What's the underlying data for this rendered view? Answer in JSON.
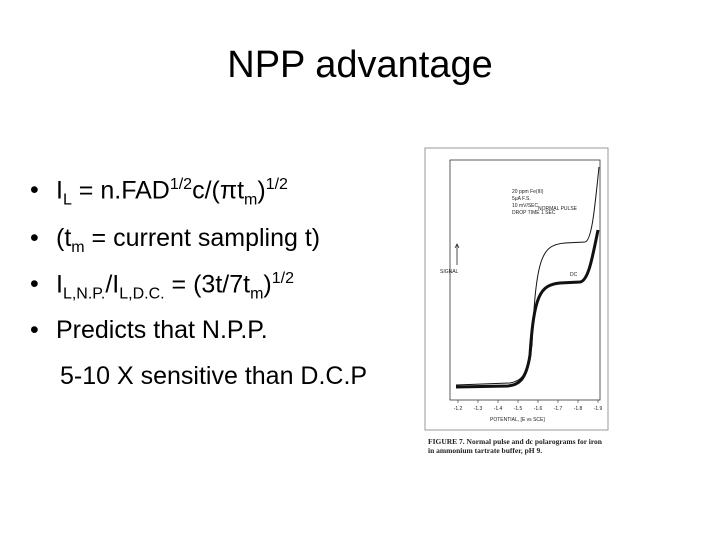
{
  "title": "NPP advantage",
  "bullets": [
    [
      {
        "text": "I"
      },
      {
        "sub": "L"
      },
      {
        "text": " = n.FAD"
      },
      {
        "sup": "1/2"
      },
      {
        "text": "c/(πt"
      },
      {
        "sub": "m"
      },
      {
        "text": ")"
      },
      {
        "sup": "1/2"
      }
    ],
    [
      {
        "text": "(t"
      },
      {
        "sub": "m"
      },
      {
        "text": " = current sampling t)"
      }
    ],
    [
      {
        "text": "I"
      },
      {
        "sub": "L,N.P."
      },
      {
        "text": "/I"
      },
      {
        "sub": "L,D.C."
      },
      {
        "text": " = (3t/7t"
      },
      {
        "sub": "m"
      },
      {
        "text": ")"
      },
      {
        "sup": "1/2"
      }
    ],
    [
      {
        "text": "Predicts that N.P.P."
      }
    ],
    [
      {
        "text": "5-10 X sensitive than D.C.P"
      }
    ]
  ],
  "figure": {
    "curve_labels": [
      "NORMAL PULSE",
      "DC"
    ],
    "y_label": "SIGNAL",
    "conditions": [
      "20 ppm Fe(III)",
      "5μA F.S.",
      "10 mV/SEC",
      "DROP TIME 1 SEC"
    ],
    "xticks": [
      "-1.2",
      "-1.3",
      "-1.4",
      "-1.5",
      "-1.6",
      "-1.7",
      "-1.8",
      "-1.9"
    ],
    "x_label": "POTENTIAL, [E vs SCE]",
    "caption": "FIGURE 7. Normal pulse and dc polarograms for iron in ammonium tartrate buffer, pH 9."
  }
}
